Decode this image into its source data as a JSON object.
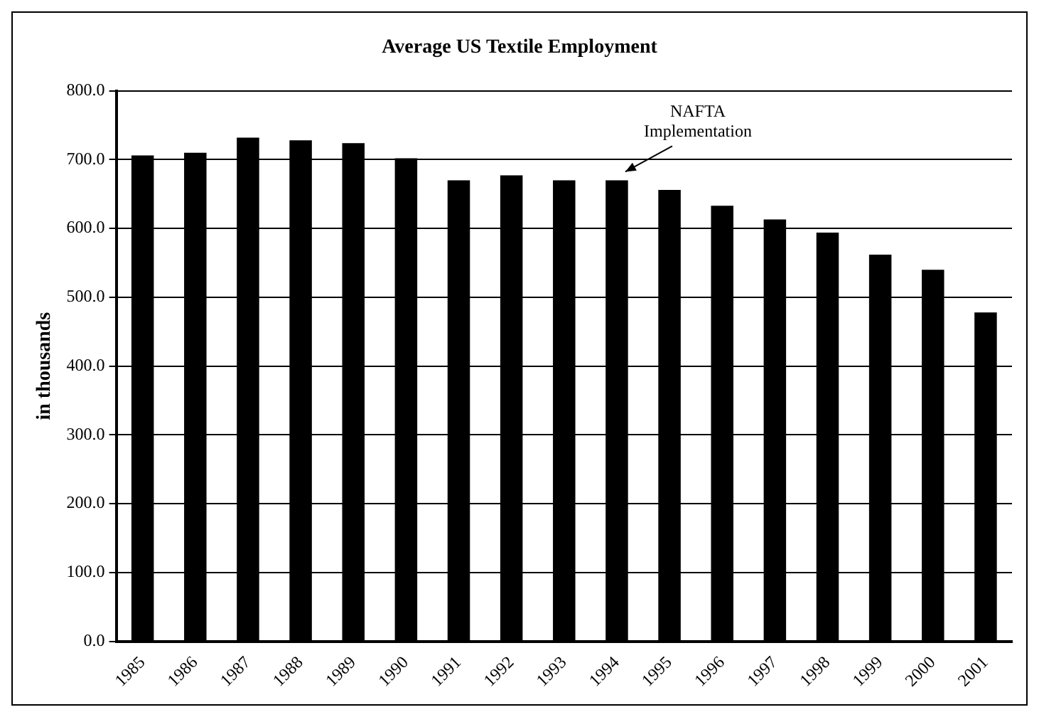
{
  "chart_data": {
    "type": "bar",
    "title": "Average US Textile Employment",
    "ylabel": "in thousands",
    "categories": [
      "1985",
      "1986",
      "1987",
      "1988",
      "1989",
      "1990",
      "1991",
      "1992",
      "1993",
      "1994",
      "1995",
      "1996",
      "1997",
      "1998",
      "1999",
      "2000",
      "2001"
    ],
    "values": [
      706,
      710,
      732,
      728,
      724,
      702,
      670,
      677,
      670,
      670,
      656,
      633,
      613,
      594,
      562,
      540,
      478
    ],
    "color": "#000000",
    "ylim": [
      0,
      800
    ],
    "yticks": [
      {
        "value": 0,
        "label": "0.0"
      },
      {
        "value": 100,
        "label": "100.0"
      },
      {
        "value": 200,
        "label": "200.0"
      },
      {
        "value": 300,
        "label": "300.0"
      },
      {
        "value": 400,
        "label": "400.0"
      },
      {
        "value": 500,
        "label": "500.0"
      },
      {
        "value": 600,
        "label": "600.0"
      },
      {
        "value": 700,
        "label": "700.0"
      },
      {
        "value": 800,
        "label": "800.0"
      }
    ],
    "grid": "y",
    "legend": false,
    "annotations": [
      {
        "text": "NAFTA Implementation",
        "x": "1994",
        "y": 670
      }
    ]
  }
}
